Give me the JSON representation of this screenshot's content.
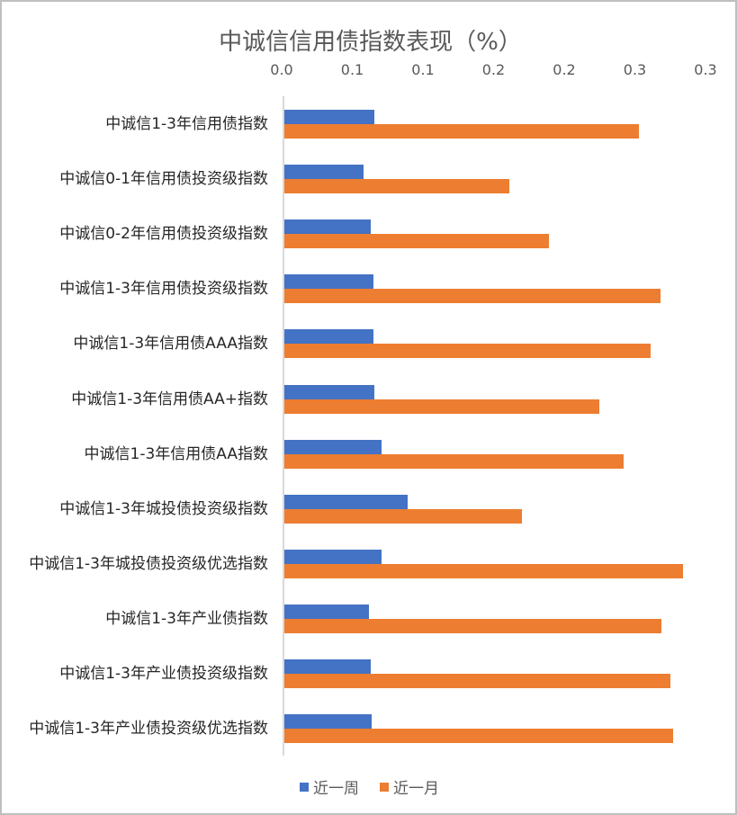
{
  "chart_data": {
    "type": "bar",
    "orientation": "horizontal",
    "title": "中诚信信用债指数表现（%）",
    "xlabel": "",
    "ylabel": "",
    "xlim": [
      0,
      0.3
    ],
    "x_ticks": [
      "0.0",
      "0.1",
      "0.1",
      "0.2",
      "0.2",
      "0.3",
      "0.3"
    ],
    "x_tick_values": [
      0.0,
      0.05,
      0.1,
      0.15,
      0.2,
      0.25,
      0.3
    ],
    "x_axis_position": "top",
    "grid": false,
    "legend_position": "bottom",
    "categories": [
      "中诚信1-3年信用债指数",
      "中诚信0-1年信用债投资级指数",
      "中诚信0-2年信用债投资级指数",
      "中诚信1-3年信用债投资级指数",
      "中诚信1-3年信用债AAA指数",
      "中诚信1-3年信用债AA+指数",
      "中诚信1-3年信用债AA指数",
      "中诚信1-3年城投债投资级指数",
      "中诚信1-3年城投债投资级优选指数",
      "中诚信1-3年产业债指数",
      "中诚信1-3年产业债投资级指数",
      "中诚信1-3年产业债投资级优选指数"
    ],
    "series": [
      {
        "name": "近一周",
        "color": "#4472C4",
        "values": [
          0.064,
          0.056,
          0.061,
          0.063,
          0.063,
          0.064,
          0.069,
          0.087,
          0.069,
          0.06,
          0.061,
          0.062
        ]
      },
      {
        "name": "近一月",
        "color": "#ED7D31",
        "values": [
          0.251,
          0.159,
          0.187,
          0.266,
          0.259,
          0.223,
          0.24,
          0.168,
          0.282,
          0.267,
          0.273,
          0.275
        ]
      }
    ]
  },
  "colors": {
    "week": "#4472C4",
    "month": "#ED7D31",
    "axis": "#D9D9D9",
    "border": "#BFBFBF"
  }
}
